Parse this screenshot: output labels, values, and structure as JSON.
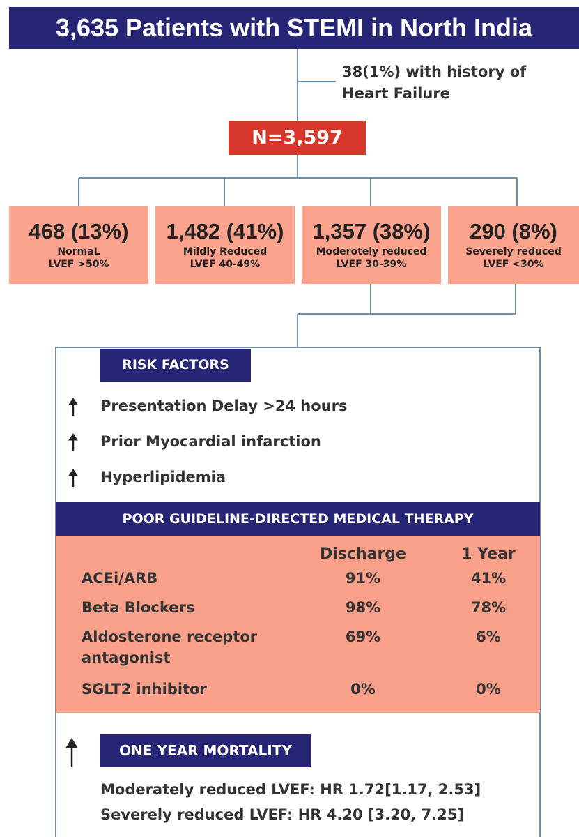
{
  "header": {
    "title": "3,635 Patients with STEMI in North India"
  },
  "note": {
    "line1": "38(1%) with history of",
    "line2": "Heart Failure"
  },
  "total": {
    "label": "N=3,597"
  },
  "groups": [
    {
      "count": "468 (13%)",
      "line1": "NormaL",
      "line2": "LVEF >50%"
    },
    {
      "count": "1,482 (41%)",
      "line1": "Mildly Reduced",
      "line2": "LVEF 40-49%"
    },
    {
      "count": "1,357 (38%)",
      "line1": "Moderotely  reduced",
      "line2": "LVEF 30-39%"
    },
    {
      "count": "290 (8%)",
      "line1": "Severely reduced",
      "line2": "LVEF <30%"
    }
  ],
  "risk_factors": {
    "title": "RISK FACTORS",
    "items": [
      "Presentation Delay >24 hours",
      "Prior Myocardial infarction",
      "Hyperlipidemia"
    ]
  },
  "gdmt": {
    "title": "POOR GUIDELINE-DIRECTED MEDICAL THERAPY",
    "columns": [
      "Discharge",
      "1 Year"
    ],
    "rows": [
      [
        "ACEi/ARB",
        "91%",
        "41%"
      ],
      [
        "Beta Blockers",
        "98%",
        "78%"
      ],
      [
        "Aldosterone receptor antagonist",
        "69%",
        "6%"
      ],
      [
        "SGLT2 inhibitor",
        "0%",
        "0%"
      ]
    ]
  },
  "mortality": {
    "title": "ONE YEAR MORTALITY",
    "lines": [
      "Moderately reduced LVEF: HR 1.72[1.17, 2.53]",
      "Severely reduced LVEF: HR 4.20 [3.20, 7.25]"
    ]
  }
}
